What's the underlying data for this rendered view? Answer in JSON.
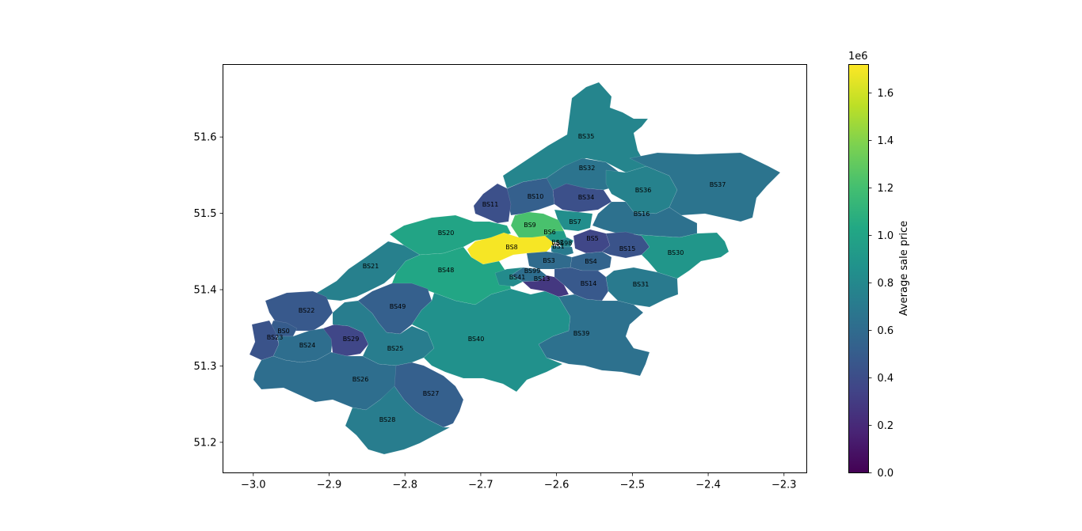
{
  "chart_data": {
    "type": "choropleth",
    "xlim": [
      -3.04,
      -2.27
    ],
    "ylim": [
      51.16,
      51.695
    ],
    "x_ticks": [
      -3.0,
      -2.9,
      -2.8,
      -2.7,
      -2.6,
      -2.5,
      -2.4,
      -2.3
    ],
    "x_tick_labels": [
      "−3.0",
      "−2.9",
      "−2.8",
      "−2.7",
      "−2.6",
      "−2.5",
      "−2.4",
      "−2.3"
    ],
    "y_ticks": [
      51.2,
      51.3,
      51.4,
      51.5,
      51.6
    ],
    "y_tick_labels": [
      "51.2",
      "51.3",
      "51.4",
      "51.5",
      "51.6"
    ],
    "colorbar": {
      "label": "Average sale price",
      "multiplier": "1e6",
      "range": [
        0,
        1.72
      ],
      "ticks": [
        0.0,
        0.2,
        0.4,
        0.6,
        0.8,
        1.0,
        1.2,
        1.4,
        1.6
      ],
      "tick_labels": [
        "0.0",
        "0.2",
        "0.4",
        "0.6",
        "0.8",
        "1.0",
        "1.2",
        "1.4",
        "1.6"
      ],
      "colormap": "viridis"
    },
    "districts": [
      {
        "name": "BS35",
        "value": 0.78
      },
      {
        "name": "BS32",
        "value": 0.66
      },
      {
        "name": "BS36",
        "value": 0.76
      },
      {
        "name": "BS37",
        "value": 0.66
      },
      {
        "name": "BS10",
        "value": 0.52
      },
      {
        "name": "BS34",
        "value": 0.42
      },
      {
        "name": "BS11",
        "value": 0.42
      },
      {
        "name": "BS16",
        "value": 0.64
      },
      {
        "name": "BS7",
        "value": 0.84
      },
      {
        "name": "BS9",
        "value": 1.22
      },
      {
        "name": "BS20",
        "value": 1.0
      },
      {
        "name": "BS6",
        "value": 0.95
      },
      {
        "name": "BS8",
        "value": 1.7
      },
      {
        "name": "BS98",
        "value": 0.8
      },
      {
        "name": "BS1",
        "value": 0.7
      },
      {
        "name": "BS2",
        "value": 0.6
      },
      {
        "name": "BS5",
        "value": 0.36
      },
      {
        "name": "BS15",
        "value": 0.44
      },
      {
        "name": "BS30",
        "value": 0.9
      },
      {
        "name": "BS21",
        "value": 0.74
      },
      {
        "name": "BS48",
        "value": 1.02
      },
      {
        "name": "BS3",
        "value": 0.6
      },
      {
        "name": "BS4",
        "value": 0.55
      },
      {
        "name": "BS99",
        "value": 0.62
      },
      {
        "name": "BS41",
        "value": 0.82
      },
      {
        "name": "BS13",
        "value": 0.28
      },
      {
        "name": "BS14",
        "value": 0.48
      },
      {
        "name": "BS31",
        "value": 0.7
      },
      {
        "name": "BS22",
        "value": 0.48
      },
      {
        "name": "BS49",
        "value": 0.52
      },
      {
        "name": "BS0",
        "value": 0.5
      },
      {
        "name": "BS23",
        "value": 0.44
      },
      {
        "name": "BS24",
        "value": 0.62
      },
      {
        "name": "BS29",
        "value": 0.36
      },
      {
        "name": "BS25",
        "value": 0.72
      },
      {
        "name": "BS40",
        "value": 0.86
      },
      {
        "name": "BS39",
        "value": 0.64
      },
      {
        "name": "BS26",
        "value": 0.62
      },
      {
        "name": "BS27",
        "value": 0.52
      },
      {
        "name": "BS28",
        "value": 0.72
      }
    ]
  }
}
